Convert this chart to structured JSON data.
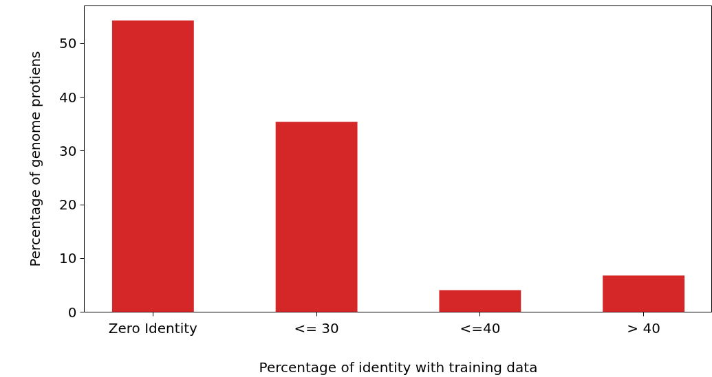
{
  "chart_data": {
    "type": "bar",
    "xlabel": "Percentage of identity with training data",
    "ylabel": "Percentage of genome protiens",
    "categories": [
      "Zero Identity",
      "<= 30",
      "<=40",
      "> 40"
    ],
    "values": [
      54.3,
      35.4,
      4.1,
      6.8
    ],
    "color": "#d62728",
    "ylim": [
      0,
      57
    ],
    "yticks": [
      0,
      10,
      20,
      30,
      40,
      50
    ],
    "grid": false
  }
}
